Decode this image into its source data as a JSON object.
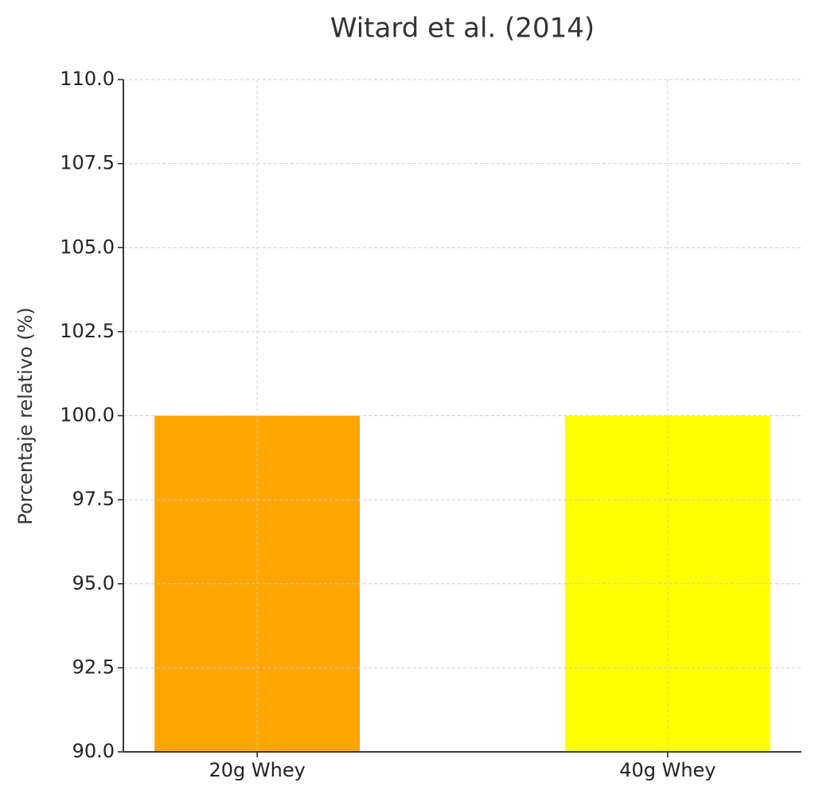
{
  "chart_data": {
    "type": "bar",
    "title": "Witard et al. (2014)",
    "y_label": "Porcentaje relativo (%)",
    "categories": [
      "20g Whey",
      "40g Whey"
    ],
    "values": [
      100,
      100
    ],
    "colors": [
      "#ffa500",
      "#ffff00"
    ],
    "ylim": [
      90,
      110
    ],
    "yticks": [
      {
        "value": 90,
        "label": "90.0"
      },
      {
        "value": 92.5,
        "label": "92.5"
      },
      {
        "value": 95,
        "label": "95.0"
      },
      {
        "value": 97.5,
        "label": "97.5"
      },
      {
        "value": 100,
        "label": "100.0"
      },
      {
        "value": 102.5,
        "label": "102.5"
      },
      {
        "value": 105,
        "label": "105.0"
      },
      {
        "value": 107.5,
        "label": "107.5"
      },
      {
        "value": 110,
        "label": "110.0"
      }
    ],
    "grid": true
  }
}
